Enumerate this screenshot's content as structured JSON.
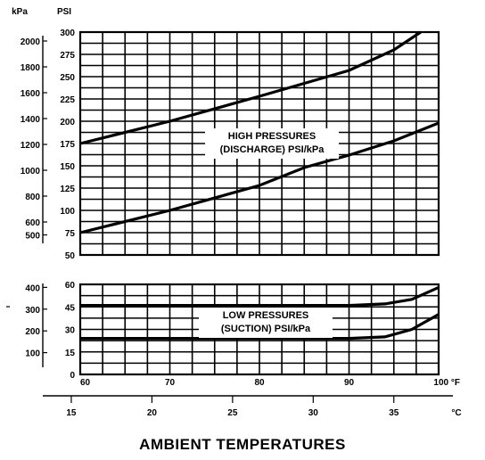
{
  "chart_data": [
    {
      "type": "line",
      "title": "",
      "panel": "high",
      "xlabel": "",
      "x_unit_f": "°F",
      "x_unit_c": "°C",
      "xlim_f": [
        60,
        100
      ],
      "left_axis_label": "kPa",
      "right_axis_label": "PSI",
      "ylim_psi": [
        50,
        300
      ],
      "psi_ticks": [
        "300",
        "275",
        "250",
        "225",
        "200",
        "175",
        "150",
        "125",
        "100",
        "75",
        "50"
      ],
      "kpa_ticks": [
        {
          "label": "2000",
          "psi": 290
        },
        {
          "label": "1800",
          "psi": 261
        },
        {
          "label": "1600",
          "psi": 232
        },
        {
          "label": "1400",
          "psi": 203
        },
        {
          "label": "1200",
          "psi": 174
        },
        {
          "label": "1000",
          "psi": 145
        },
        {
          "label": "800",
          "psi": 116
        },
        {
          "label": "600",
          "psi": 87
        },
        {
          "label": "500",
          "psi": 72.5
        }
      ],
      "annotation": [
        "HIGH PRESSURES",
        "(DISCHARGE) PSI/kPa"
      ],
      "series": [
        {
          "x": [
            60,
            70,
            80,
            90,
            95,
            98
          ],
          "y": [
            175,
            200,
            228,
            257,
            280,
            300
          ]
        },
        {
          "x": [
            60,
            70,
            80,
            85,
            90,
            95,
            100
          ],
          "y": [
            75,
            100,
            128,
            148,
            162,
            178,
            198
          ]
        }
      ]
    },
    {
      "type": "line",
      "title": "",
      "panel": "low",
      "xlabel": "AMBIENT TEMPERATURES",
      "x_unit_f": "°F",
      "x_unit_c": "°C",
      "xlim_f": [
        60,
        100
      ],
      "left_axis_label": "",
      "right_axis_label": "",
      "ylim_psi": [
        0,
        60
      ],
      "psi_ticks": [
        "60",
        "45",
        "30",
        "15",
        "0"
      ],
      "kpa_ticks": [
        {
          "label": "400",
          "psi": 58
        },
        {
          "label": "300",
          "psi": 43.5
        },
        {
          "label": "200",
          "psi": 29
        },
        {
          "label": "100",
          "psi": 14.5
        }
      ],
      "annotation": [
        "LOW PRESSURES",
        "(SUCTION) PSI/kPa"
      ],
      "series": [
        {
          "x": [
            60,
            70,
            80,
            90,
            94,
            97,
            100
          ],
          "y": [
            46,
            46,
            46,
            46,
            47,
            50,
            58
          ]
        },
        {
          "x": [
            60,
            70,
            80,
            90,
            94,
            97,
            100
          ],
          "y": [
            24,
            24,
            24,
            24,
            25,
            30,
            40
          ]
        }
      ],
      "x_ticks_f": [
        "60",
        "70",
        "80",
        "90",
        "100 °F"
      ],
      "x_ticks_c": [
        {
          "label": "15",
          "c": 15
        },
        {
          "label": "20",
          "c": 20
        },
        {
          "label": "25",
          "c": 25
        },
        {
          "label": "30",
          "c": 30
        },
        {
          "label": "35",
          "c": 35
        },
        {
          "label": "°C",
          "c": 37.7
        }
      ]
    }
  ]
}
